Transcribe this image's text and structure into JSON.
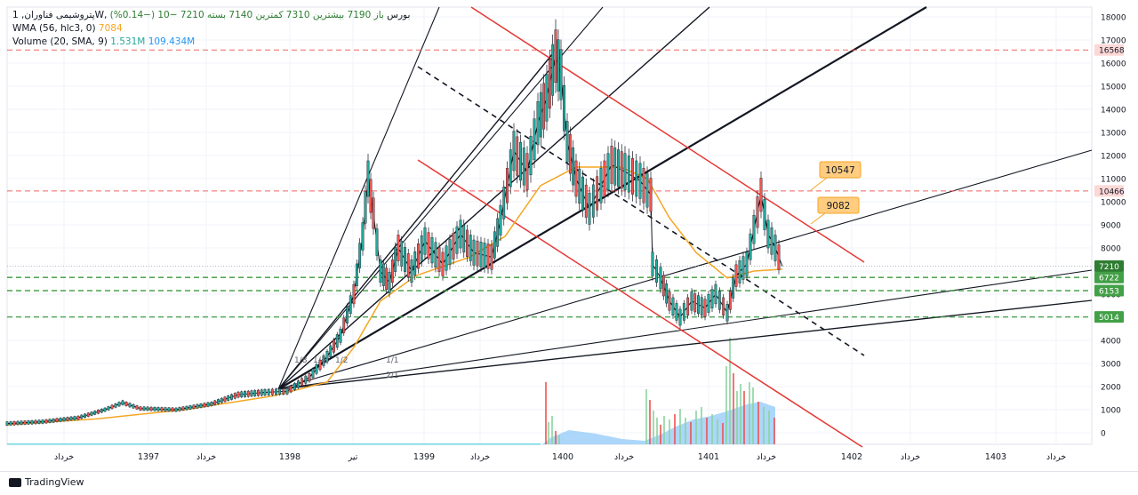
{
  "legend": {
    "symbol_line": "پتروشیمی فناوران, 1W, بورس",
    "ohlc": {
      "open": "باز 7190",
      "high": "بیشترین 7310",
      "low": "کمترین 7140",
      "close": "بسته 7210",
      "change": "−10 (−0.14%)"
    },
    "wma_label": "WMA (56, hlc3, 0)",
    "wma_value": "7084",
    "vol_label": "Volume (20, SMA, 9)",
    "vol_value": "1.531M",
    "vol_sma": "109.434M"
  },
  "footer": {
    "brand": "TradingView"
  },
  "colors": {
    "up": "#26a69a",
    "down": "#ef5350",
    "candle": "#131722",
    "wma": "#f5a623",
    "fib_lines": "#131722",
    "red_channel": "#e53935",
    "green_dash": "#43a047",
    "red_dash": "#ef5350",
    "vol_sma_fill": "#90caf9"
  },
  "chart_data": {
    "type": "line",
    "title": "",
    "y_axis": {
      "ticks": [
        0,
        1000,
        2000,
        3000,
        4000,
        5000,
        6000,
        7000,
        8000,
        9000,
        10000,
        11000,
        12000,
        13000,
        14000,
        15000,
        16000,
        17000,
        18000
      ],
      "side": "right"
    },
    "x_axis": {
      "ticks": [
        "خرداد",
        "1397",
        "خرداد",
        "1398",
        "تیر",
        "1399",
        "خرداد",
        "1400",
        "خرداد",
        "1401",
        "خرداد",
        "1402",
        "خرداد",
        "1403",
        "خرداد"
      ]
    },
    "price_series": [
      {
        "x": 0,
        "y": 400
      },
      {
        "x": 40,
        "y": 480
      },
      {
        "x": 80,
        "y": 650
      },
      {
        "x": 110,
        "y": 1000
      },
      {
        "x": 130,
        "y": 1300
      },
      {
        "x": 150,
        "y": 1050
      },
      {
        "x": 190,
        "y": 1000
      },
      {
        "x": 230,
        "y": 1250
      },
      {
        "x": 260,
        "y": 1650
      },
      {
        "x": 290,
        "y": 1750
      },
      {
        "x": 315,
        "y": 1800
      },
      {
        "x": 340,
        "y": 2400
      },
      {
        "x": 360,
        "y": 3300
      },
      {
        "x": 375,
        "y": 4200
      },
      {
        "x": 390,
        "y": 6000
      },
      {
        "x": 400,
        "y": 8500
      },
      {
        "x": 406,
        "y": 11000
      },
      {
        "x": 412,
        "y": 9500
      },
      {
        "x": 420,
        "y": 7000
      },
      {
        "x": 430,
        "y": 6500
      },
      {
        "x": 440,
        "y": 8000
      },
      {
        "x": 455,
        "y": 7000
      },
      {
        "x": 470,
        "y": 8300
      },
      {
        "x": 490,
        "y": 7300
      },
      {
        "x": 510,
        "y": 8600
      },
      {
        "x": 525,
        "y": 7800
      },
      {
        "x": 545,
        "y": 7600
      },
      {
        "x": 555,
        "y": 9200
      },
      {
        "x": 570,
        "y": 12200
      },
      {
        "x": 585,
        "y": 11300
      },
      {
        "x": 597,
        "y": 13400
      },
      {
        "x": 607,
        "y": 14500
      },
      {
        "x": 617,
        "y": 16300
      },
      {
        "x": 623,
        "y": 15500
      },
      {
        "x": 630,
        "y": 12600
      },
      {
        "x": 640,
        "y": 11000
      },
      {
        "x": 655,
        "y": 9700
      },
      {
        "x": 668,
        "y": 10700
      },
      {
        "x": 680,
        "y": 11600
      },
      {
        "x": 695,
        "y": 11300
      },
      {
        "x": 712,
        "y": 10900
      },
      {
        "x": 724,
        "y": 10300
      },
      {
        "x": 726,
        "y": 7300
      },
      {
        "x": 735,
        "y": 6700
      },
      {
        "x": 745,
        "y": 5700
      },
      {
        "x": 757,
        "y": 5000
      },
      {
        "x": 770,
        "y": 5700
      },
      {
        "x": 785,
        "y": 5400
      },
      {
        "x": 797,
        "y": 6000
      },
      {
        "x": 810,
        "y": 5200
      },
      {
        "x": 820,
        "y": 6800
      },
      {
        "x": 832,
        "y": 7300
      },
      {
        "x": 840,
        "y": 8800
      },
      {
        "x": 848,
        "y": 10300
      },
      {
        "x": 856,
        "y": 8600
      },
      {
        "x": 864,
        "y": 8000
      },
      {
        "x": 872,
        "y": 7210
      }
    ],
    "wma_series": [
      {
        "x": 0,
        "y": 350
      },
      {
        "x": 100,
        "y": 600
      },
      {
        "x": 200,
        "y": 1000
      },
      {
        "x": 300,
        "y": 1600
      },
      {
        "x": 360,
        "y": 2200
      },
      {
        "x": 390,
        "y": 3700
      },
      {
        "x": 420,
        "y": 5700
      },
      {
        "x": 460,
        "y": 6800
      },
      {
        "x": 520,
        "y": 7600
      },
      {
        "x": 560,
        "y": 8500
      },
      {
        "x": 600,
        "y": 10700
      },
      {
        "x": 640,
        "y": 11500
      },
      {
        "x": 690,
        "y": 11500
      },
      {
        "x": 720,
        "y": 11000
      },
      {
        "x": 745,
        "y": 9300
      },
      {
        "x": 775,
        "y": 7800
      },
      {
        "x": 810,
        "y": 6700
      },
      {
        "x": 840,
        "y": 7000
      },
      {
        "x": 872,
        "y": 7084
      }
    ],
    "horizontal_levels": [
      {
        "value": 16568,
        "label": "16568",
        "style": "red-dash"
      },
      {
        "value": 10466,
        "label": "10466",
        "style": "red-dash"
      },
      {
        "value": 7210,
        "label": "7210",
        "style": "current"
      },
      {
        "value": 6722,
        "label": "6722",
        "style": "green-dash"
      },
      {
        "value": 6153,
        "label": "6153",
        "style": "green-dash"
      },
      {
        "value": 5014,
        "label": "5014",
        "style": "green-dash"
      }
    ],
    "callouts": [
      {
        "text": "10547"
      },
      {
        "text": "9082"
      }
    ],
    "fan_labels": [
      "1/8",
      "1/4",
      "1/2",
      "1/1",
      "2/1"
    ]
  }
}
